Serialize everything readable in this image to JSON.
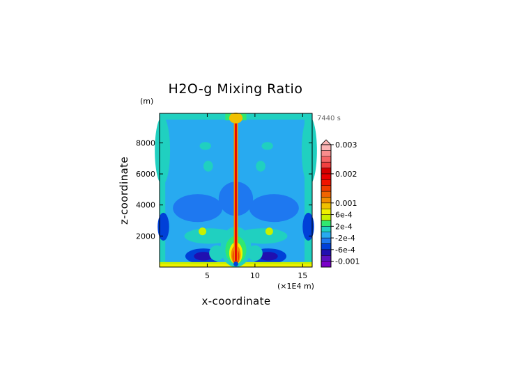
{
  "chart_data": {
    "type": "heatmap",
    "title": "H2O-g Mixing Ratio",
    "xlabel": "x-coordinate",
    "ylabel": "z-coordinate",
    "x_unit": "(×1E4 m)",
    "y_unit": "(m)",
    "time_label": "7440 s",
    "xlim": [
      0,
      16
    ],
    "ylim": [
      0,
      9900
    ],
    "x_ticks": [
      5,
      10,
      15
    ],
    "y_ticks": [
      2000,
      4000,
      6000,
      8000
    ],
    "colorbar": {
      "tick_labels": [
        "0.003",
        "0.002",
        "0.001",
        "6e-4",
        "2e-4",
        "-2e-4",
        "-6e-4",
        "-0.001"
      ],
      "tick_values": [
        0.003,
        0.002,
        0.001,
        0.0006,
        0.0002,
        -0.0002,
        -0.0006,
        -0.001
      ],
      "levels": [
        {
          "v": -0.0011,
          "color": "#7a00c8"
        },
        {
          "v": -0.0009,
          "color": "#5a10c0"
        },
        {
          "v": -0.0007,
          "color": "#2010b0"
        },
        {
          "v": -0.0005,
          "color": "#0040d8"
        },
        {
          "v": -0.0003,
          "color": "#1e78f0"
        },
        {
          "v": -0.0001,
          "color": "#28aaf0"
        },
        {
          "v": 0.0001,
          "color": "#20d0c0"
        },
        {
          "v": 0.0003,
          "color": "#30e870"
        },
        {
          "v": 0.0005,
          "color": "#c8f000"
        },
        {
          "v": 0.0007,
          "color": "#f0f000"
        },
        {
          "v": 0.0009,
          "color": "#f0c000"
        },
        {
          "v": 0.0011,
          "color": "#f08c00"
        },
        {
          "v": 0.0013,
          "color": "#f06400"
        },
        {
          "v": 0.0015,
          "color": "#f03c00"
        },
        {
          "v": 0.0017,
          "color": "#f01400"
        },
        {
          "v": 0.0019,
          "color": "#e80000"
        },
        {
          "v": 0.0021,
          "color": "#d40000"
        },
        {
          "v": 0.0023,
          "color": "#f04040"
        },
        {
          "v": 0.0025,
          "color": "#f46464"
        },
        {
          "v": 0.0027,
          "color": "#f88c8c"
        },
        {
          "v": 0.0029,
          "color": "#fcb4b4"
        }
      ]
    }
  }
}
